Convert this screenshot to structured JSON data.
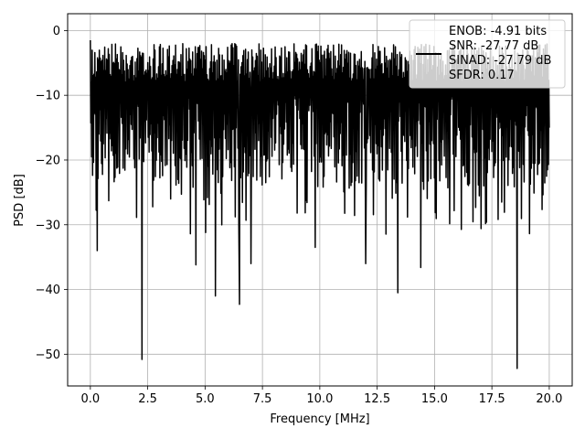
{
  "chart_data": {
    "type": "line",
    "title": "",
    "xlabel": "Frequency [MHz]",
    "ylabel": "PSD [dB]",
    "xlim": [
      -0.99,
      21.0
    ],
    "ylim": [
      -54.9,
      2.6
    ],
    "x_ticks": [
      0.0,
      2.5,
      5.0,
      7.5,
      10.0,
      12.5,
      15.0,
      17.5,
      20.0
    ],
    "x_tick_labels": [
      "0.0",
      "2.5",
      "5.0",
      "7.5",
      "10.0",
      "12.5",
      "15.0",
      "17.5",
      "20.0"
    ],
    "y_ticks": [
      0,
      -10,
      -20,
      -30,
      -40,
      -50
    ],
    "y_tick_labels": [
      "0",
      "−10",
      "−20",
      "−30",
      "−40",
      "−50"
    ],
    "grid": true,
    "legend_position": "top-right",
    "series": [
      {
        "name": "ENOB: -4.91 bits\nSNR: -27.77 dB\nSINAD: -27.79 dB\nSFDR: 0.17",
        "color": "#000000",
        "x_start": 0.0,
        "x_end": 20.0,
        "num_points": 1024,
        "upper_envelope_dB": -2,
        "typical_lower_dB": -24,
        "deep_nulls": [
          {
            "x": 2.25,
            "y": -50.8
          },
          {
            "x": 18.6,
            "y": -52.2
          },
          {
            "x": 13.4,
            "y": -40.5
          },
          {
            "x": 5.45,
            "y": -41.0
          },
          {
            "x": 6.5,
            "y": -42.3
          },
          {
            "x": 4.6,
            "y": -36.2
          },
          {
            "x": 7.0,
            "y": -36.0
          },
          {
            "x": 14.4,
            "y": -36.6
          },
          {
            "x": 12.0,
            "y": -36.0
          },
          {
            "x": 9.8,
            "y": -33.5
          },
          {
            "x": 0.3,
            "y": -34.0
          }
        ]
      }
    ]
  },
  "legend": {
    "lines": [
      "ENOB: -4.91 bits",
      "SNR: -27.77 dB",
      "SINAD: -27.79 dB",
      "SFDR: 0.17"
    ]
  }
}
